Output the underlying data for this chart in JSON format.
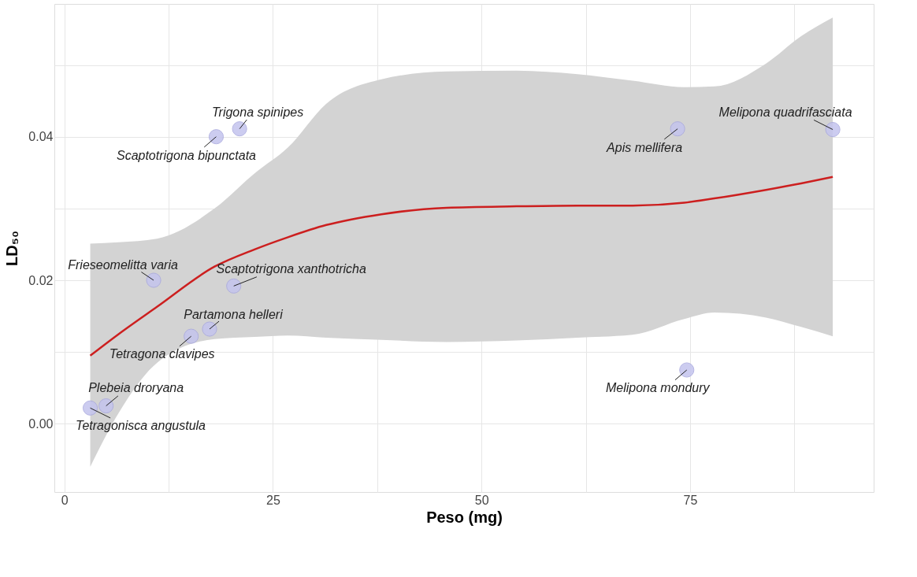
{
  "chart_data": {
    "type": "scatter",
    "xlabel": "Peso (mg)",
    "ylabel": "LD₅₀",
    "xlim": [
      -1.2,
      97
    ],
    "ylim": [
      -0.0095,
      0.0585
    ],
    "xticks": [
      0,
      {
        "value": 12.5,
        "label": null
      },
      25,
      {
        "value": 37.5,
        "label": null
      },
      50,
      {
        "value": 62.5,
        "label": null
      },
      75,
      {
        "value": 87.5,
        "label": null
      }
    ],
    "yticks": [
      {
        "value": 0,
        "label": "0.00"
      },
      {
        "value": 0.01,
        "label": null
      },
      {
        "value": 0.02,
        "label": "0.02"
      },
      {
        "value": 0.03,
        "label": null
      },
      {
        "value": 0.04,
        "label": "0.04"
      },
      {
        "value": 0.05,
        "label": null
      }
    ],
    "grid": true,
    "series": [
      {
        "type": "line",
        "color": "#cc1f1f",
        "line_style": "solid",
        "x": [
          3.1,
          6.5,
          11.1,
          18,
          22.8,
          26.8,
          31.4,
          38,
          45.8,
          54.2,
          61.5,
          68.1,
          74.3,
          77.9,
          84.1,
          88.3,
          92.1
        ],
        "values": [
          0.0095,
          0.0125,
          0.0163,
          0.0219,
          0.0243,
          0.026,
          0.0277,
          0.0292,
          0.0301,
          0.0303,
          0.0304,
          0.0304,
          0.0308,
          0.0314,
          0.0326,
          0.0335,
          0.0344
        ],
        "upper": [
          0.0251,
          0.0253,
          0.0258,
          0.03,
          0.0349,
          0.0385,
          0.0446,
          0.048,
          0.0491,
          0.0492,
          0.0487,
          0.0478,
          0.0469,
          0.047,
          0.0502,
          0.054,
          0.0566
        ],
        "lower": [
          -0.006,
          0.0015,
          0.0085,
          0.0118,
          0.0121,
          0.0123,
          0.012,
          0.0117,
          0.0114,
          0.0116,
          0.012,
          0.0124,
          0.0146,
          0.0155,
          0.0148,
          0.0135,
          0.0122
        ]
      },
      {
        "marker": "circle",
        "color": "#c4c4ee",
        "x": [
          3.1,
          5.0,
          10.7,
          15.2,
          17.4,
          20.3,
          18.2,
          21.0,
          73.5,
          92.1,
          74.6
        ],
        "values": [
          0.0022,
          0.0025,
          0.02,
          0.0122,
          0.0132,
          0.0192,
          0.04,
          0.0411,
          0.0411,
          0.041,
          0.0075
        ]
      }
    ],
    "annotations": [
      {
        "text": "Tetragonisca angustula",
        "x": 3.1,
        "y": 0.0022
      },
      {
        "text": "Plebeia droryana",
        "x": 5.0,
        "y": 0.0025
      },
      {
        "text": "Frieseomelitta varia",
        "x": 10.7,
        "y": 0.02
      },
      {
        "text": "Tetragona clavipes",
        "x": 15.2,
        "y": 0.0122
      },
      {
        "text": "Partamona helleri",
        "x": 17.4,
        "y": 0.0132
      },
      {
        "text": "Scaptotrigona xanthotricha",
        "x": 20.3,
        "y": 0.0192
      },
      {
        "text": "Scaptotrigona bipunctata",
        "x": 18.2,
        "y": 0.04
      },
      {
        "text": "Trigona spinipes",
        "x": 21.0,
        "y": 0.0411
      },
      {
        "text": "Apis mellifera",
        "x": 73.5,
        "y": 0.0411
      },
      {
        "text": "Melipona quadrifasciata",
        "x": 92.1,
        "y": 0.041
      },
      {
        "text": "Melipona mondury",
        "x": 74.6,
        "y": 0.0075
      }
    ]
  }
}
